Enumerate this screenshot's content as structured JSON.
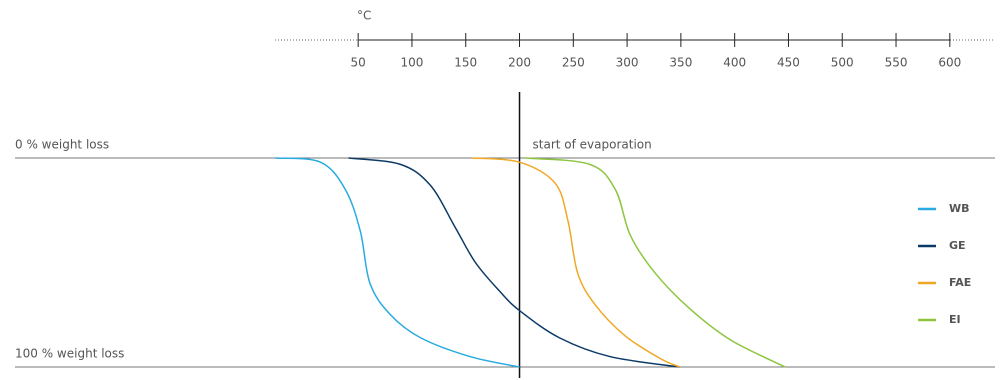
{
  "chart_data": {
    "type": "line",
    "xlabel": "°C",
    "xlim": [
      -269,
      642
    ],
    "xticks": [
      50,
      100,
      150,
      200,
      250,
      300,
      350,
      400,
      450,
      500,
      550,
      600
    ],
    "ylim": [
      0,
      100
    ],
    "yticks": [
      {
        "value": 0,
        "label": "0 % weight loss"
      },
      {
        "value": 100,
        "label": "100 % weight loss"
      }
    ],
    "annotation": {
      "text": "start of evaporation",
      "x": 200
    },
    "legend": "right",
    "series": [
      {
        "name": "WB",
        "color": "#29aae1",
        "x": [
          -27,
          15,
          38,
          52,
          61,
          80,
          108,
          154,
          200
        ],
        "values": [
          0,
          2,
          15,
          35,
          60,
          75,
          86,
          95,
          100
        ]
      },
      {
        "name": "GE",
        "color": "#0b3a66",
        "x": [
          41,
          89,
          117,
          140,
          159,
          182,
          200,
          237,
          284,
          349
        ],
        "values": [
          0,
          3,
          13,
          33,
          50,
          64,
          73,
          86,
          95,
          100
        ]
      },
      {
        "name": "FAE",
        "color": "#f0a824",
        "x": [
          156,
          200,
          233,
          245,
          254,
          270,
          298,
          331,
          349
        ],
        "values": [
          0,
          2,
          12,
          30,
          55,
          70,
          85,
          96,
          100
        ]
      },
      {
        "name": "EI",
        "color": "#8cc63f",
        "x": [
          205,
          265,
          289,
          303,
          326,
          358,
          396,
          447
        ],
        "values": [
          0,
          3,
          15,
          37,
          55,
          72,
          87,
          100
        ]
      }
    ]
  }
}
